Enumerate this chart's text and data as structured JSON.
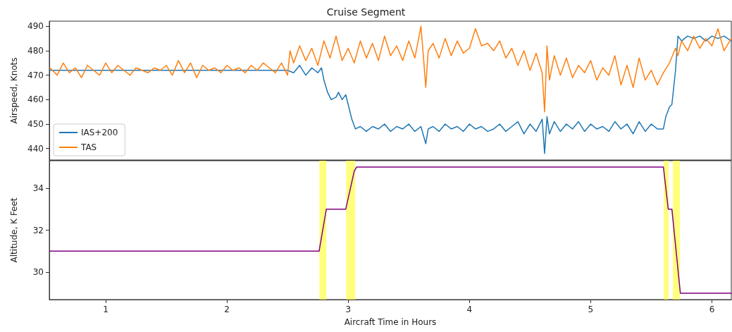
{
  "chart_data": [
    {
      "type": "line",
      "title": "Cruise Segment",
      "ylabel": "Airspeed, Knots",
      "xlim": [
        0.535,
        6.16
      ],
      "ylim": [
        435.3,
        492.1
      ],
      "yticks": [
        440,
        450,
        460,
        470,
        480,
        490
      ],
      "tick_labels": "y",
      "grid": false,
      "legend": "lower left",
      "series": [
        {
          "name": "IAS+200",
          "color": "#1f77b4",
          "x": [
            0.54,
            0.7,
            0.9,
            1.1,
            1.3,
            1.5,
            1.7,
            1.9,
            2.1,
            2.3,
            2.5,
            2.55,
            2.6,
            2.65,
            2.7,
            2.75,
            2.78,
            2.8,
            2.83,
            2.86,
            2.9,
            2.92,
            2.95,
            2.98,
            3.0,
            3.03,
            3.06,
            3.1,
            3.15,
            3.2,
            3.25,
            3.3,
            3.35,
            3.4,
            3.45,
            3.5,
            3.55,
            3.6,
            3.64,
            3.66,
            3.7,
            3.75,
            3.8,
            3.85,
            3.9,
            3.95,
            4.0,
            4.05,
            4.1,
            4.15,
            4.2,
            4.25,
            4.3,
            4.35,
            4.4,
            4.45,
            4.5,
            4.55,
            4.6,
            4.62,
            4.64,
            4.66,
            4.7,
            4.75,
            4.8,
            4.85,
            4.9,
            4.95,
            5.0,
            5.05,
            5.1,
            5.15,
            5.2,
            5.25,
            5.3,
            5.35,
            5.4,
            5.45,
            5.5,
            5.55,
            5.6,
            5.62,
            5.65,
            5.67,
            5.7,
            5.72,
            5.75,
            5.8,
            5.85,
            5.9,
            5.95,
            6.0,
            6.05,
            6.1,
            6.16
          ],
          "values": [
            472,
            472,
            472,
            472,
            472,
            472,
            472,
            472,
            472,
            472,
            472,
            471,
            474,
            470,
            473,
            471,
            473,
            468,
            463,
            460,
            461,
            463,
            460,
            462,
            458,
            452,
            448,
            449,
            447,
            449,
            448,
            450,
            447,
            449,
            448,
            450,
            447,
            449,
            442,
            448,
            449,
            447,
            450,
            448,
            449,
            447,
            450,
            448,
            449,
            447,
            448,
            450,
            447,
            449,
            451,
            446,
            450,
            447,
            452,
            438,
            453,
            446,
            451,
            447,
            450,
            448,
            451,
            447,
            450,
            448,
            449,
            447,
            451,
            448,
            450,
            446,
            451,
            447,
            450,
            448,
            448,
            453,
            457,
            458,
            472,
            486,
            484,
            486,
            485,
            486,
            484,
            486,
            485,
            486,
            484
          ]
        },
        {
          "name": "TAS",
          "color": "#ff7f0e",
          "x": [
            0.54,
            0.6,
            0.65,
            0.7,
            0.75,
            0.8,
            0.85,
            0.9,
            0.95,
            1.0,
            1.05,
            1.1,
            1.15,
            1.2,
            1.25,
            1.3,
            1.35,
            1.4,
            1.45,
            1.5,
            1.55,
            1.6,
            1.65,
            1.7,
            1.75,
            1.8,
            1.85,
            1.9,
            1.95,
            2.0,
            2.05,
            2.1,
            2.15,
            2.2,
            2.25,
            2.3,
            2.35,
            2.4,
            2.45,
            2.5,
            2.52,
            2.55,
            2.6,
            2.65,
            2.7,
            2.75,
            2.8,
            2.85,
            2.9,
            2.95,
            3.0,
            3.05,
            3.1,
            3.15,
            3.2,
            3.25,
            3.3,
            3.35,
            3.4,
            3.45,
            3.5,
            3.55,
            3.6,
            3.62,
            3.64,
            3.66,
            3.7,
            3.75,
            3.8,
            3.85,
            3.9,
            3.95,
            4.0,
            4.05,
            4.1,
            4.15,
            4.2,
            4.25,
            4.3,
            4.35,
            4.4,
            4.45,
            4.5,
            4.55,
            4.6,
            4.62,
            4.64,
            4.66,
            4.7,
            4.75,
            4.8,
            4.85,
            4.9,
            4.95,
            5.0,
            5.05,
            5.1,
            5.15,
            5.2,
            5.25,
            5.3,
            5.35,
            5.4,
            5.45,
            5.5,
            5.55,
            5.6,
            5.65,
            5.7,
            5.72,
            5.75,
            5.8,
            5.85,
            5.9,
            5.95,
            6.0,
            6.05,
            6.1,
            6.16
          ],
          "values": [
            473,
            470,
            475,
            471,
            473,
            469,
            474,
            472,
            470,
            475,
            471,
            474,
            472,
            470,
            473,
            472,
            471,
            473,
            472,
            474,
            470,
            476,
            471,
            475,
            469,
            474,
            472,
            473,
            471,
            474,
            472,
            473,
            471,
            474,
            472,
            475,
            473,
            471,
            475,
            470,
            480,
            475,
            482,
            476,
            481,
            474,
            484,
            477,
            486,
            476,
            481,
            475,
            484,
            477,
            483,
            476,
            486,
            478,
            482,
            476,
            484,
            477,
            490,
            478,
            465,
            480,
            483,
            477,
            485,
            478,
            484,
            479,
            481,
            489,
            482,
            483,
            480,
            484,
            477,
            481,
            474,
            480,
            472,
            479,
            471,
            455,
            482,
            468,
            478,
            470,
            477,
            469,
            474,
            471,
            476,
            468,
            473,
            470,
            478,
            466,
            474,
            465,
            477,
            468,
            472,
            466,
            471,
            475,
            481,
            478,
            484,
            480,
            486,
            481,
            485,
            482,
            489,
            480,
            485
          ]
        }
      ]
    },
    {
      "type": "line",
      "xlabel": "Aircraft Time in Hours",
      "ylabel": "Altitude, K Feet",
      "xlim": [
        0.535,
        6.16
      ],
      "xticks": [
        1,
        2,
        3,
        4,
        5,
        6
      ],
      "ylim": [
        28.7,
        35.3
      ],
      "yticks": [
        30,
        32,
        34
      ],
      "grid": false,
      "legend": false,
      "series": [
        {
          "color": "#800080",
          "x": [
            0.54,
            1.0,
            1.5,
            2.0,
            2.5,
            2.76,
            2.82,
            2.9,
            2.98,
            3.05,
            3.07,
            3.5,
            4.0,
            4.5,
            5.0,
            5.5,
            5.6,
            5.64,
            5.67,
            5.74,
            5.8,
            6.0,
            6.16
          ],
          "values": [
            31,
            31,
            31,
            31,
            31,
            31,
            33,
            33,
            33,
            34.8,
            35,
            35,
            35,
            35,
            35,
            35,
            35,
            33,
            33,
            29,
            29,
            29,
            29
          ]
        }
      ],
      "bands": [
        {
          "axis": "x",
          "from": 2.762,
          "to": 2.82,
          "color": "#ffff66"
        },
        {
          "axis": "x",
          "from": 2.983,
          "to": 3.058,
          "color": "#ffff66"
        },
        {
          "axis": "x",
          "from": 5.603,
          "to": 5.643,
          "color": "#ffff66"
        },
        {
          "axis": "x",
          "from": 5.678,
          "to": 5.736,
          "color": "#ffff66"
        }
      ]
    }
  ]
}
